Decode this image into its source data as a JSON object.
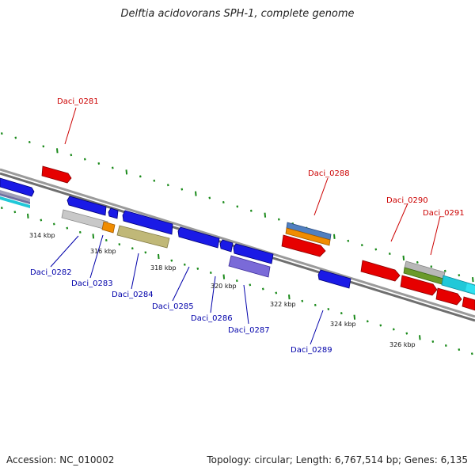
{
  "title": "Delftia acidovorans SPH-1, complete genome",
  "footer": {
    "accession": "Accession: NC_010002",
    "stats": "Topology: circular; Length: 6,767,514 bp; Genes: 6,135"
  },
  "colors": {
    "backbone": "#808080",
    "tick": "#1a8a1a",
    "forward_label": "#cc0000",
    "reverse_label": "#0000aa"
  },
  "scale_labels": [
    "314 kbp",
    "316 kbp",
    "318 kbp",
    "320 kbp",
    "322 kbp",
    "324 kbp",
    "326 kbp"
  ],
  "gene_labels": [
    {
      "text": "Daci_0281",
      "strand": "forward"
    },
    {
      "text": "Daci_0288",
      "strand": "forward"
    },
    {
      "text": "Daci_0290",
      "strand": "forward"
    },
    {
      "text": "Daci_0291",
      "strand": "forward"
    },
    {
      "text": "Daci_0282",
      "strand": "reverse"
    },
    {
      "text": "Daci_0283",
      "strand": "reverse"
    },
    {
      "text": "Daci_0284",
      "strand": "reverse"
    },
    {
      "text": "Daci_0285",
      "strand": "reverse"
    },
    {
      "text": "Daci_0286",
      "strand": "reverse"
    },
    {
      "text": "Daci_0287",
      "strand": "reverse"
    },
    {
      "text": "Daci_0289",
      "strand": "reverse"
    }
  ]
}
